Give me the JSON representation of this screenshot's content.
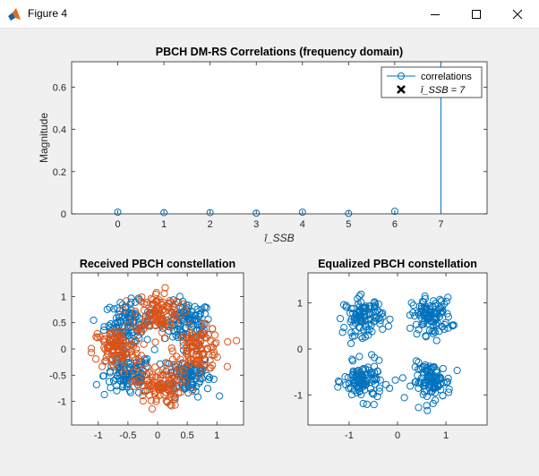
{
  "window": {
    "title": "Figure 4",
    "icon": "matlab-logo-icon",
    "controls": [
      "minimize-icon",
      "maximize-icon",
      "close-icon"
    ]
  },
  "chart_data": [
    {
      "type": "stem",
      "title": "PBCH DM-RS Correlations (frequency domain)",
      "xlabel": "ī_SSB",
      "ylabel": "Magnitude",
      "x_ticks": [
        "0",
        "1",
        "2",
        "3",
        "4",
        "5",
        "6",
        "7"
      ],
      "y_ticks": [
        "0",
        "0.2",
        "0.4",
        "0.6"
      ],
      "xlim": [
        -1,
        8
      ],
      "ylim": [
        0,
        0.72
      ],
      "series": [
        {
          "name": "correlations",
          "x": [
            0,
            1,
            2,
            3,
            4,
            5,
            6,
            7
          ],
          "y": [
            0.008,
            0.006,
            0.006,
            0.003,
            0.008,
            0.002,
            0.012,
            0.72
          ],
          "color": "#0072BD",
          "marker": "circle"
        },
        {
          "name": "ī_SSB = 7",
          "x": [
            7
          ],
          "y": [
            0.72
          ],
          "color": "#000000",
          "marker": "x"
        }
      ],
      "legend": {
        "position": "top-right",
        "entries": [
          "correlations",
          "ī_SSB = 7"
        ]
      }
    },
    {
      "type": "scatter",
      "title": "Received PBCH constellation",
      "x_ticks": [
        "-1",
        "-0.5",
        "0",
        "0.5",
        "1"
      ],
      "y_ticks": [
        "-1",
        "-0.5",
        "0",
        "0.5",
        "1"
      ],
      "xlim": [
        -1.45,
        1.45
      ],
      "ylim": [
        -1.45,
        1.45
      ],
      "series": [
        {
          "name": "",
          "color": "#0072BD",
          "cluster_centers": [
            [
              0.5,
              0.5
            ],
            [
              0.5,
              -0.5
            ],
            [
              -0.5,
              0.5
            ],
            [
              -0.5,
              -0.5
            ]
          ],
          "count": 432
        },
        {
          "name": "",
          "color": "#D95319",
          "cluster_centers": [
            [
              0.7,
              0
            ],
            [
              -0.7,
              0
            ],
            [
              0,
              0.7
            ],
            [
              0,
              -0.7
            ]
          ],
          "count": 432
        }
      ]
    },
    {
      "type": "scatter",
      "title": "Equalized PBCH constellation",
      "x_ticks": [
        "-1",
        "0",
        "1"
      ],
      "y_ticks": [
        "-1",
        "0",
        "1"
      ],
      "xlim": [
        -1.85,
        1.85
      ],
      "ylim": [
        -1.65,
        1.65
      ],
      "series": [
        {
          "name": "",
          "color": "#0072BD",
          "cluster_centers": [
            [
              0.707,
              0.707
            ],
            [
              0.707,
              -0.707
            ],
            [
              -0.707,
              0.707
            ],
            [
              -0.707,
              -0.707
            ]
          ],
          "count": 432
        }
      ]
    }
  ]
}
